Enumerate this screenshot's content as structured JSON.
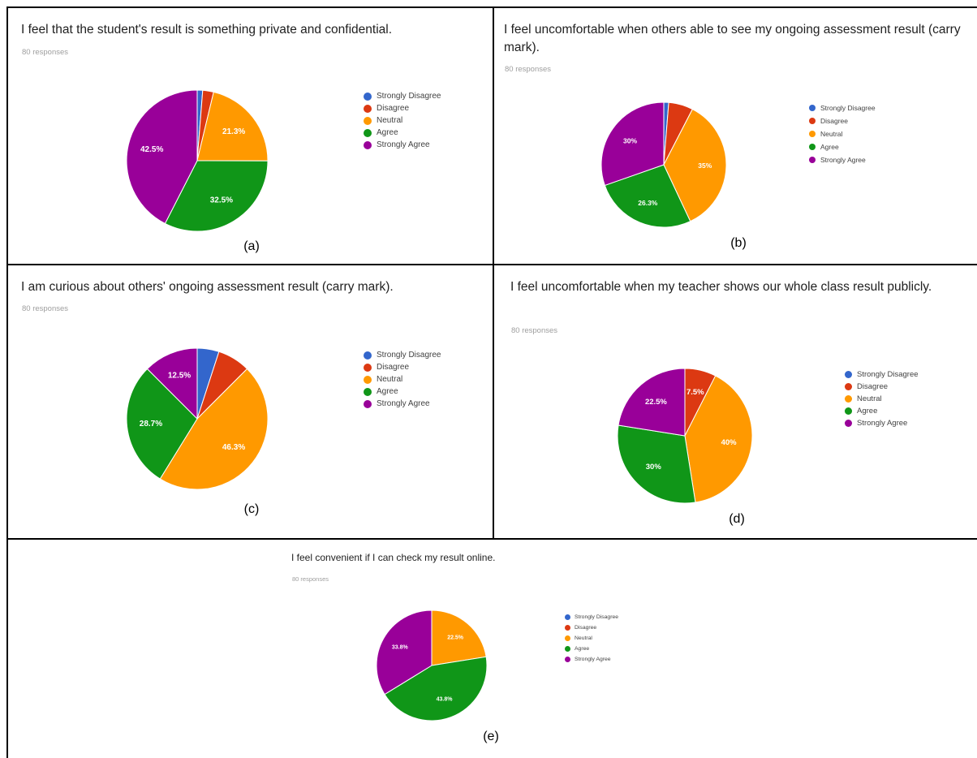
{
  "colors": {
    "Strongly Disagree": "#3366cc",
    "Disagree": "#dc3912",
    "Neutral": "#ff9900",
    "Agree": "#109618",
    "Strongly Agree": "#990099"
  },
  "chart_data": [
    {
      "type": "pie",
      "panel": "a",
      "title": "I feel that the student's result is something private and confidential.",
      "subtitle": "80 responses",
      "figure_label": "(a)",
      "legend": {
        "position": "right",
        "entries": [
          "Strongly Disagree",
          "Disagree",
          "Neutral",
          "Agree",
          "Strongly Agree"
        ]
      },
      "slices": [
        {
          "name": "Strongly Disagree",
          "value": 1.25,
          "label": ""
        },
        {
          "name": "Disagree",
          "value": 2.5,
          "label": ""
        },
        {
          "name": "Neutral",
          "value": 21.3,
          "label": "21.3%"
        },
        {
          "name": "Agree",
          "value": 32.5,
          "label": "32.5%"
        },
        {
          "name": "Strongly Agree",
          "value": 42.5,
          "label": "42.5%"
        }
      ]
    },
    {
      "type": "pie",
      "panel": "b",
      "title": "I feel uncomfortable when others able to see my ongoing assessment result (carry mark).",
      "subtitle": "80 responses",
      "figure_label": "(b)",
      "legend": {
        "position": "right",
        "entries": [
          "Strongly Disagree",
          "Disagree",
          "Neutral",
          "Agree",
          "Strongly Agree"
        ]
      },
      "slices": [
        {
          "name": "Strongly Disagree",
          "value": 1.25,
          "label": ""
        },
        {
          "name": "Disagree",
          "value": 6.25,
          "label": ""
        },
        {
          "name": "Neutral",
          "value": 35,
          "label": "35%"
        },
        {
          "name": "Agree",
          "value": 26.3,
          "label": "26.3%"
        },
        {
          "name": "Strongly Agree",
          "value": 30,
          "label": "30%"
        }
      ]
    },
    {
      "type": "pie",
      "panel": "c",
      "title": "I am curious about others' ongoing assessment result (carry mark).",
      "subtitle": "80 responses",
      "figure_label": "(c)",
      "legend": {
        "position": "right",
        "entries": [
          "Strongly Disagree",
          "Disagree",
          "Neutral",
          "Agree",
          "Strongly Agree"
        ]
      },
      "slices": [
        {
          "name": "Strongly Disagree",
          "value": 5,
          "label": ""
        },
        {
          "name": "Disagree",
          "value": 7.5,
          "label": ""
        },
        {
          "name": "Neutral",
          "value": 46.3,
          "label": "46.3%"
        },
        {
          "name": "Agree",
          "value": 28.7,
          "label": "28.7%"
        },
        {
          "name": "Strongly Agree",
          "value": 12.5,
          "label": "12.5%"
        }
      ]
    },
    {
      "type": "pie",
      "panel": "d",
      "title": "I feel uncomfortable when my teacher shows our whole class result publicly.",
      "subtitle": "80 responses",
      "figure_label": "(d)",
      "legend": {
        "position": "right",
        "entries": [
          "Strongly Disagree",
          "Disagree",
          "Neutral",
          "Agree",
          "Strongly Agree"
        ]
      },
      "slices": [
        {
          "name": "Strongly Disagree",
          "value": 0,
          "label": ""
        },
        {
          "name": "Disagree",
          "value": 7.5,
          "label": "7.5%"
        },
        {
          "name": "Neutral",
          "value": 40,
          "label": "40%"
        },
        {
          "name": "Agree",
          "value": 30,
          "label": "30%"
        },
        {
          "name": "Strongly Agree",
          "value": 22.5,
          "label": "22.5%"
        }
      ]
    },
    {
      "type": "pie",
      "panel": "e",
      "title": "I feel convenient if I can check my result online.",
      "subtitle": "80 responses",
      "figure_label": "(e)",
      "legend": {
        "position": "right",
        "entries": [
          "Strongly Disagree",
          "Disagree",
          "Neutral",
          "Agree",
          "Strongly Agree"
        ]
      },
      "slices": [
        {
          "name": "Strongly Disagree",
          "value": 0,
          "label": ""
        },
        {
          "name": "Disagree",
          "value": 0,
          "label": ""
        },
        {
          "name": "Neutral",
          "value": 22.5,
          "label": "22.5%"
        },
        {
          "name": "Agree",
          "value": 43.8,
          "label": "43.8%"
        },
        {
          "name": "Strongly Agree",
          "value": 33.8,
          "label": "33.8%"
        }
      ]
    }
  ]
}
